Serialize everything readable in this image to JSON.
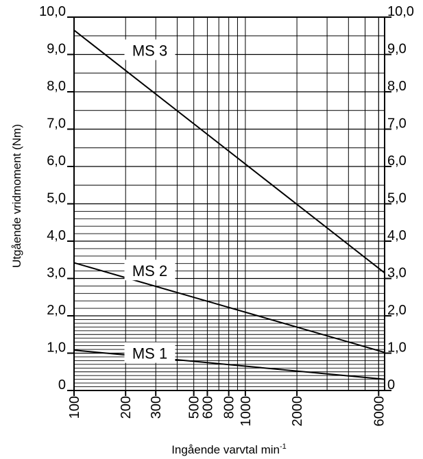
{
  "chart_data": {
    "type": "line",
    "xscale": "log",
    "xlim": [
      100,
      6500
    ],
    "ylim": [
      0,
      10
    ],
    "xlabel": "Ingående varvtal min",
    "xlabel_sup": "-1",
    "ylabel": "Utgående vridmoment (Nm)",
    "x_ticks": [
      {
        "value": 100,
        "label": "100"
      },
      {
        "value": 200,
        "label": "200"
      },
      {
        "value": 300,
        "label": "300"
      },
      {
        "value": 500,
        "label": "500"
      },
      {
        "value": 600,
        "label": "600"
      },
      {
        "value": 800,
        "label": "800"
      },
      {
        "value": 1000,
        "label": "1000"
      },
      {
        "value": 2000,
        "label": "2000"
      },
      {
        "value": 6000,
        "label": "6000"
      }
    ],
    "y_ticks_left": [
      {
        "value": 0,
        "label": "0"
      },
      {
        "value": 1,
        "label": "1,0"
      },
      {
        "value": 2,
        "label": "2,0"
      },
      {
        "value": 3,
        "label": "3,0"
      },
      {
        "value": 4,
        "label": "4,0"
      },
      {
        "value": 5,
        "label": "5,0"
      },
      {
        "value": 6,
        "label": "6,0"
      },
      {
        "value": 7,
        "label": "7,0"
      },
      {
        "value": 8,
        "label": "8,0"
      },
      {
        "value": 9,
        "label": "9,0"
      },
      {
        "value": 10,
        "label": "10,0"
      }
    ],
    "y_ticks_right": [
      {
        "value": 0,
        "label": "0"
      },
      {
        "value": 1,
        "label": "1,0"
      },
      {
        "value": 2,
        "label": "2,0"
      },
      {
        "value": 3,
        "label": "3,0"
      },
      {
        "value": 4,
        "label": "4,0"
      },
      {
        "value": 5,
        "label": "5,0"
      },
      {
        "value": 6,
        "label": "6,0"
      },
      {
        "value": 7,
        "label": "7,0"
      },
      {
        "value": 8,
        "label": "8,0"
      },
      {
        "value": 9,
        "label": "9,0"
      },
      {
        "value": 10,
        "label": "10,0"
      }
    ],
    "series": [
      {
        "name": "MS 3",
        "points": [
          [
            100,
            9.65
          ],
          [
            6500,
            3.15
          ]
        ]
      },
      {
        "name": "MS 2",
        "points": [
          [
            100,
            3.42
          ],
          [
            6500,
            1.02
          ]
        ]
      },
      {
        "name": "MS 1",
        "points": [
          [
            100,
            1.08
          ],
          [
            6500,
            0.3
          ]
        ]
      }
    ],
    "grid": true,
    "line_color": "#000000"
  }
}
